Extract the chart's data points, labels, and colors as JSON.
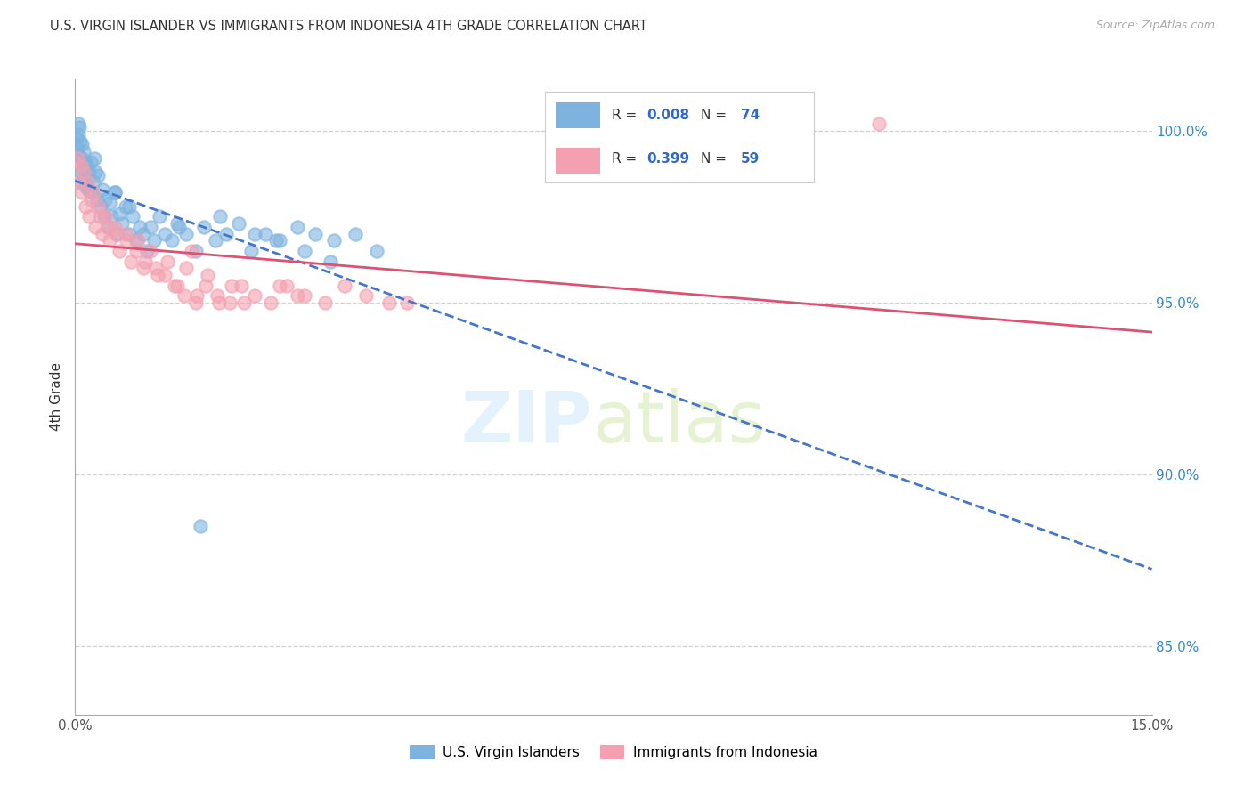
{
  "title": "U.S. VIRGIN ISLANDER VS IMMIGRANTS FROM INDONESIA 4TH GRADE CORRELATION CHART",
  "source": "Source: ZipAtlas.com",
  "ylabel": "4th Grade",
  "xlim": [
    0.0,
    15.0
  ],
  "ylim": [
    83.0,
    101.5
  ],
  "yticks": [
    85.0,
    90.0,
    95.0,
    100.0
  ],
  "ytick_labels": [
    "85.0%",
    "90.0%",
    "95.0%",
    "100.0%"
  ],
  "xticks": [
    0.0,
    2.5,
    5.0,
    7.5,
    10.0,
    12.5,
    15.0
  ],
  "series1_label": "U.S. Virgin Islanders",
  "series2_label": "Immigrants from Indonesia",
  "series1_color": "#7eb3e0",
  "series2_color": "#f4a0b0",
  "series1_R": 0.008,
  "series1_N": 74,
  "series2_R": 0.399,
  "series2_N": 59,
  "legend_color": "#3366cc",
  "trend1_color": "#4477cc",
  "trend2_color": "#e05070",
  "background_color": "#ffffff",
  "grid_color": "#cccccc",
  "right_axis_color": "#3388cc",
  "series1_x": [
    0.02,
    0.03,
    0.04,
    0.05,
    0.05,
    0.06,
    0.07,
    0.08,
    0.09,
    0.1,
    0.1,
    0.11,
    0.12,
    0.13,
    0.14,
    0.15,
    0.16,
    0.17,
    0.18,
    0.2,
    0.22,
    0.23,
    0.25,
    0.27,
    0.3,
    0.32,
    0.35,
    0.38,
    0.4,
    0.42,
    0.45,
    0.48,
    0.5,
    0.55,
    0.58,
    0.62,
    0.65,
    0.7,
    0.75,
    0.8,
    0.85,
    0.9,
    0.95,
    1.0,
    1.05,
    1.1,
    1.18,
    1.25,
    1.35,
    1.45,
    1.55,
    1.68,
    1.8,
    1.95,
    2.1,
    2.28,
    2.45,
    2.65,
    2.85,
    3.1,
    3.35,
    3.6,
    3.9,
    4.2,
    0.28,
    0.55,
    0.75,
    1.42,
    2.02,
    2.5,
    2.8,
    3.2,
    3.55,
    1.75
  ],
  "series1_y": [
    99.8,
    99.5,
    100.2,
    99.9,
    99.3,
    100.1,
    99.7,
    98.8,
    99.6,
    98.5,
    99.2,
    98.9,
    99.4,
    98.7,
    99.1,
    98.4,
    99.0,
    98.6,
    98.3,
    98.8,
    99.1,
    98.2,
    98.5,
    99.2,
    98.0,
    98.7,
    97.8,
    98.3,
    97.5,
    98.0,
    97.2,
    97.9,
    97.5,
    98.2,
    97.0,
    97.6,
    97.3,
    97.8,
    97.0,
    97.5,
    96.8,
    97.2,
    97.0,
    96.5,
    97.2,
    96.8,
    97.5,
    97.0,
    96.8,
    97.2,
    97.0,
    96.5,
    97.2,
    96.8,
    97.0,
    97.3,
    96.5,
    97.0,
    96.8,
    97.2,
    97.0,
    96.8,
    97.0,
    96.5,
    98.8,
    98.2,
    97.8,
    97.3,
    97.5,
    97.0,
    96.8,
    96.5,
    96.2,
    88.5
  ],
  "series2_x": [
    0.03,
    0.06,
    0.08,
    0.1,
    0.12,
    0.15,
    0.18,
    0.2,
    0.25,
    0.28,
    0.32,
    0.38,
    0.42,
    0.48,
    0.55,
    0.62,
    0.7,
    0.78,
    0.88,
    0.95,
    1.05,
    1.15,
    1.28,
    1.42,
    1.55,
    1.7,
    1.85,
    2.0,
    2.18,
    2.35,
    0.22,
    0.35,
    0.45,
    0.58,
    0.72,
    0.85,
    0.98,
    1.12,
    1.25,
    1.38,
    1.52,
    1.68,
    1.82,
    1.98,
    2.15,
    2.32,
    2.5,
    2.72,
    2.95,
    3.2,
    3.48,
    3.75,
    4.05,
    4.38,
    1.62,
    2.85,
    3.1,
    4.62,
    11.2
  ],
  "series2_y": [
    99.2,
    98.5,
    99.0,
    98.2,
    98.8,
    97.8,
    98.5,
    97.5,
    98.2,
    97.2,
    97.8,
    97.0,
    97.5,
    96.8,
    97.2,
    96.5,
    97.0,
    96.2,
    96.8,
    96.0,
    96.5,
    95.8,
    96.2,
    95.5,
    96.0,
    95.2,
    95.8,
    95.0,
    95.5,
    95.0,
    98.0,
    97.5,
    97.2,
    97.0,
    96.8,
    96.5,
    96.2,
    96.0,
    95.8,
    95.5,
    95.2,
    95.0,
    95.5,
    95.2,
    95.0,
    95.5,
    95.2,
    95.0,
    95.5,
    95.2,
    95.0,
    95.5,
    95.2,
    95.0,
    96.5,
    95.5,
    95.2,
    95.0,
    100.2
  ]
}
